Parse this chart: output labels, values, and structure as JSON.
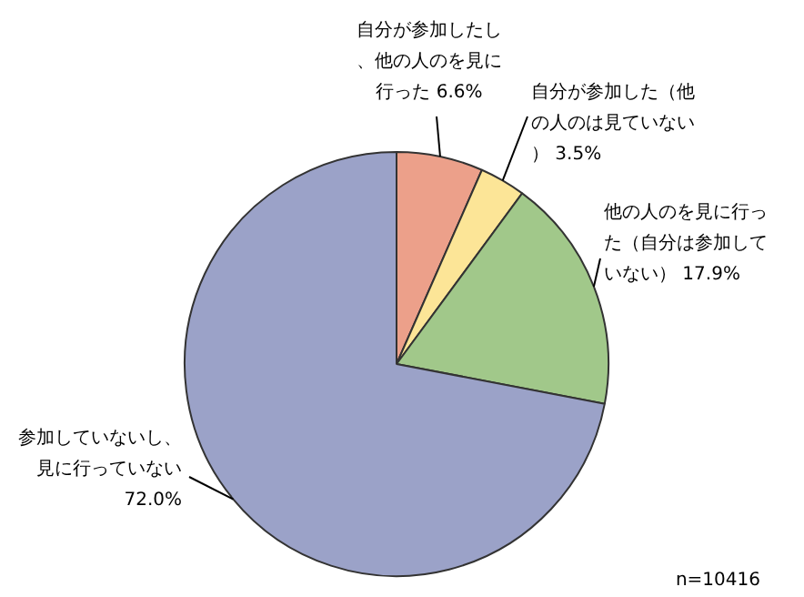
{
  "chart_data": {
    "type": "pie",
    "categories": [
      "自分が参加したし、他の人のを見に行った",
      "自分が参加した（他の人のは見ていない）",
      "他の人のを見に行った（自分は参加していない）",
      "参加していないし、見に行っていない"
    ],
    "values": [
      6.6,
      3.5,
      17.9,
      72.0
    ],
    "colors": [
      "#eca08a",
      "#fce597",
      "#a1c88a",
      "#9ba2c8"
    ],
    "value_labels": [
      "6.6%",
      "3.5%",
      "17.9%",
      "72.0%"
    ],
    "annotations": [
      "n=10416"
    ]
  }
}
